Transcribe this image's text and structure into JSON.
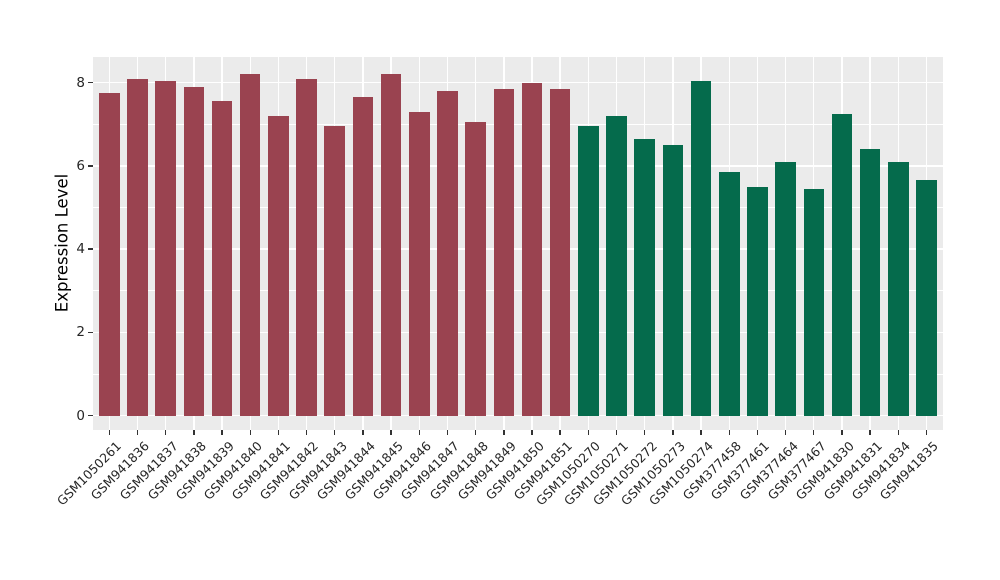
{
  "chart_data": {
    "type": "bar",
    "title": "",
    "xlabel": "",
    "ylabel": "Expression Level",
    "ylim": [
      0,
      8.6
    ],
    "yticks": [
      0,
      2,
      4,
      6,
      8
    ],
    "grid": true,
    "legend": "none",
    "x_label_rotation": 45,
    "panel_background": "#EBEBEB",
    "gridline_color": "#FFFFFF",
    "axis_text_color": "#262626",
    "tick_color": "#333333",
    "group_colors": {
      "maroon": "#9A4350",
      "green": "#056B4C"
    },
    "categories": [
      "GSM1050261",
      "GSM941836",
      "GSM941837",
      "GSM941838",
      "GSM941839",
      "GSM941840",
      "GSM941841",
      "GSM941842",
      "GSM941843",
      "GSM941844",
      "GSM941845",
      "GSM941846",
      "GSM941847",
      "GSM941848",
      "GSM941849",
      "GSM941850",
      "GSM941851",
      "GSM1050270",
      "GSM1050271",
      "GSM1050272",
      "GSM1050273",
      "GSM1050274",
      "GSM377458",
      "GSM377461",
      "GSM377464",
      "GSM377467",
      "GSM941830",
      "GSM941831",
      "GSM941834",
      "GSM941835"
    ],
    "values": [
      7.75,
      8.1,
      8.05,
      7.9,
      7.55,
      8.2,
      7.2,
      8.1,
      6.95,
      7.65,
      8.2,
      7.3,
      7.8,
      7.05,
      7.85,
      8.0,
      7.85,
      6.95,
      7.2,
      6.65,
      6.5,
      8.05,
      5.85,
      5.5,
      6.1,
      5.45,
      7.25,
      6.4,
      6.1,
      5.65
    ],
    "bar_groups": [
      "maroon",
      "maroon",
      "maroon",
      "maroon",
      "maroon",
      "maroon",
      "maroon",
      "maroon",
      "maroon",
      "maroon",
      "maroon",
      "maroon",
      "maroon",
      "maroon",
      "maroon",
      "maroon",
      "maroon",
      "green",
      "green",
      "green",
      "green",
      "green",
      "green",
      "green",
      "green",
      "green",
      "green",
      "green",
      "green",
      "green"
    ]
  }
}
